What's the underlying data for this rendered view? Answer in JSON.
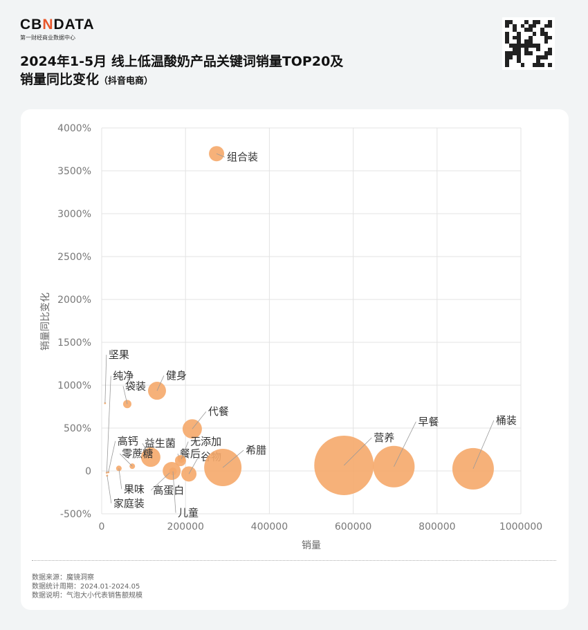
{
  "header": {
    "brand": "CBNDATA",
    "brand_sub": "第一财经商业数据中心",
    "title_line1": "2024年1-5月 线上低温酸奶产品关键词销量TOP20及",
    "title_line2": "销量同比变化",
    "title_suffix": "（抖音电商）"
  },
  "footer": {
    "source": "数据来源：魔镜洞察",
    "period": "数据统计周期：2024.01-2024.05",
    "note": "数据说明：气泡大小代表销售额规模"
  },
  "chart_data": {
    "type": "scatter",
    "subtype": "bubble",
    "xlabel": "销量",
    "ylabel": "销量同比变化",
    "xlim": [
      0,
      1000000
    ],
    "ylim": [
      -500,
      4000
    ],
    "x_ticks": [
      "0",
      "200000",
      "400000",
      "600000",
      "800000",
      "1000000"
    ],
    "y_ticks": [
      "-500%",
      "0",
      "500%",
      "1000%",
      "1500%",
      "2000%",
      "2500%",
      "3000%",
      "3500%",
      "4000%"
    ],
    "grid": true,
    "color": "#f5a86a",
    "points": [
      {
        "label": "组合装",
        "x": 274000,
        "y": 3700,
        "size": 121
      },
      {
        "label": "健身",
        "x": 132000,
        "y": 935,
        "size": 169
      },
      {
        "label": "袋装",
        "x": 61000,
        "y": 780,
        "size": 36
      },
      {
        "label": "坚果",
        "x": 8000,
        "y": 790,
        "size": 2
      },
      {
        "label": "纯净",
        "x": 12000,
        "y": -20,
        "size": 2
      },
      {
        "label": "代餐",
        "x": 216000,
        "y": 490,
        "size": 196
      },
      {
        "label": "益生菌",
        "x": 117000,
        "y": 160,
        "size": 196
      },
      {
        "label": "零蔗糖",
        "x": 73000,
        "y": 55,
        "size": 16
      },
      {
        "label": "高钙",
        "x": 16000,
        "y": -15,
        "size": 2
      },
      {
        "label": "果味",
        "x": 41000,
        "y": 30,
        "size": 16
      },
      {
        "label": "家庭装",
        "x": 13000,
        "y": -55,
        "size": 2
      },
      {
        "label": "高蛋白",
        "x": 167000,
        "y": 0,
        "size": 169
      },
      {
        "label": "餐后",
        "x": 188000,
        "y": 120,
        "size": 64
      },
      {
        "label": "无添加",
        "x": 190000,
        "y": 140,
        "size": 30
      },
      {
        "label": "儿童",
        "x": 170000,
        "y": -5,
        "size": 30
      },
      {
        "label": "谷物",
        "x": 208000,
        "y": -35,
        "size": 121
      },
      {
        "label": "希腊",
        "x": 289000,
        "y": 40,
        "size": 729
      },
      {
        "label": "营养",
        "x": 578000,
        "y": 65,
        "size": 1849
      },
      {
        "label": "早餐",
        "x": 697000,
        "y": 50,
        "size": 900
      },
      {
        "label": "桶装",
        "x": 886000,
        "y": 25,
        "size": 900
      }
    ]
  }
}
